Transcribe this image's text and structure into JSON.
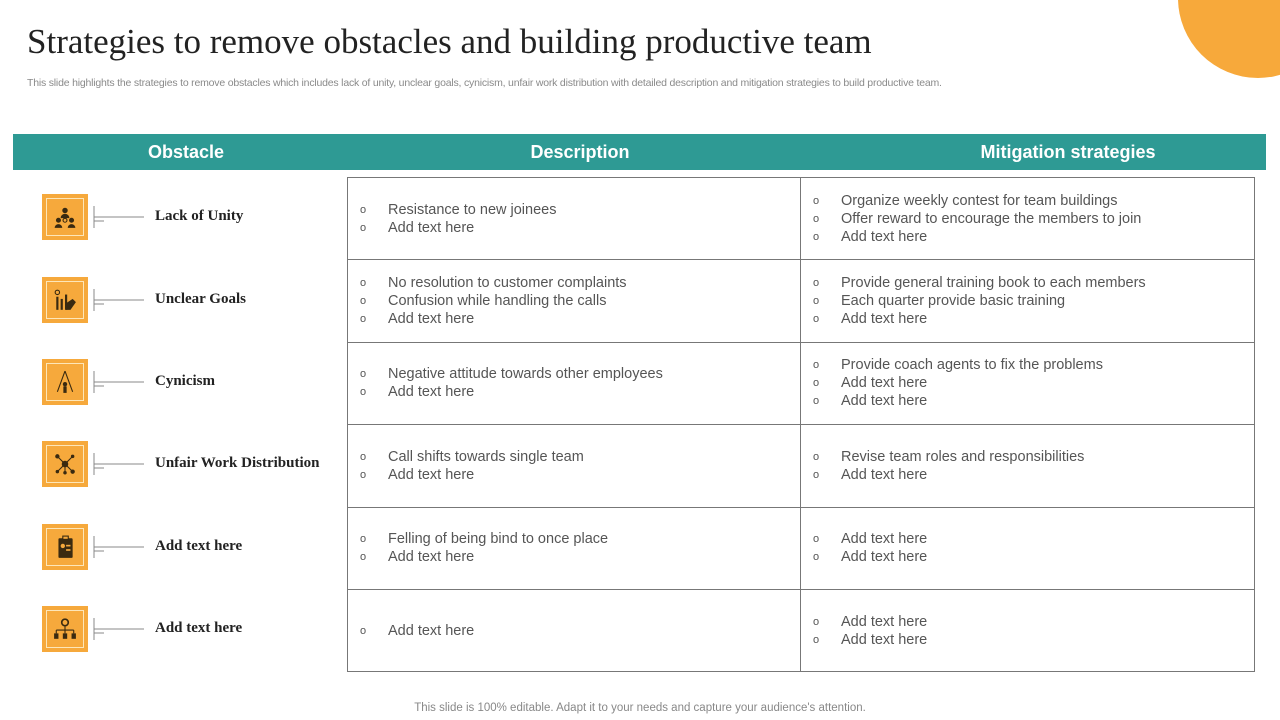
{
  "title": "Strategies to remove obstacles and building productive team",
  "subtitle": "This slide highlights the strategies to remove obstacles which includes lack of unity, unclear goals, cynicism, unfair work distribution with detailed description and mitigation strategies to build productive team.",
  "headers": [
    "Obstacle",
    "Description",
    "Mitigation strategies"
  ],
  "colors": {
    "header": "#2e9a94",
    "accent": "#f7a93b",
    "icon_bg": "#f6a93c"
  },
  "bullet": "o",
  "rows": [
    {
      "obstacle": "Lack of Unity",
      "icon": "team-people-icon",
      "description": [
        "Resistance to new joinees",
        "Add text here"
      ],
      "mitigation": [
        "Organize weekly contest for team buildings",
        "Offer reward to encourage the members to join",
        "Add text here"
      ]
    },
    {
      "obstacle": "Unclear Goals",
      "icon": "growth-chart-hand-icon",
      "description": [
        "No resolution to customer complaints",
        "Confusion while handling the calls",
        "Add text here"
      ],
      "mitigation": [
        "Provide general training book to each members",
        "Each quarter provide basic training",
        "Add text here"
      ]
    },
    {
      "obstacle": "Cynicism",
      "icon": "person-triangle-icon",
      "description": [
        "Negative attitude towards other employees",
        "Add text here"
      ],
      "mitigation": [
        "Provide coach agents to fix the problems",
        "Add text here",
        "Add text here"
      ]
    },
    {
      "obstacle": "Unfair Work Distribution",
      "icon": "network-people-icon",
      "description": [
        "Call shifts towards single team",
        "Add text here"
      ],
      "mitigation": [
        "Revise team roles and responsibilities",
        "Add text here"
      ]
    },
    {
      "obstacle": "Add text here",
      "icon": "clipboard-person-icon",
      "description": [
        "Felling of being bind to once place",
        "Add text here"
      ],
      "mitigation": [
        "Add text here",
        "Add text here"
      ]
    },
    {
      "obstacle": "Add text here",
      "icon": "org-hierarchy-icon",
      "description": [
        "Add text here"
      ],
      "mitigation": [
        "Add text here",
        "Add text here"
      ]
    }
  ],
  "footer": "This slide is 100% editable. Adapt it to your needs and capture your audience's attention."
}
